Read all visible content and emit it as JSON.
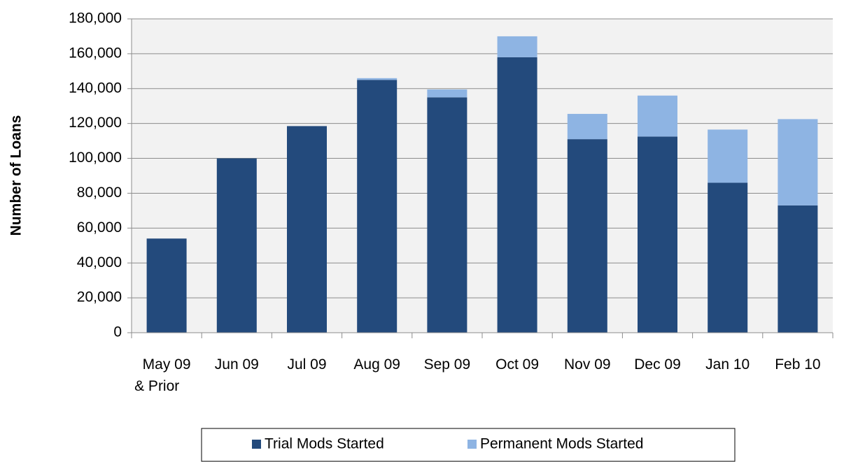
{
  "chart_data": {
    "type": "stacked_bar",
    "y_label": "Number of Loans",
    "categories": [
      "May 09\n& Prior",
      "Jun 09",
      "Jul 09",
      "Aug 09",
      "Sep 09",
      "Oct 09",
      "Nov 09",
      "Dec 09",
      "Jan 10",
      "Feb 10"
    ],
    "series": [
      {
        "name": "Trial Mods Started",
        "color": "#234a7c",
        "values": [
          54000,
          100000,
          118500,
          145000,
          135000,
          158000,
          111000,
          112500,
          86000,
          73000
        ]
      },
      {
        "name": "Permanent Mods Started",
        "color": "#8eb4e3",
        "values": [
          0,
          0,
          0,
          1000,
          4500,
          12000,
          14500,
          23500,
          30500,
          49500
        ]
      }
    ],
    "ylim": [
      0,
      180000
    ],
    "yticks": [
      0,
      {
        "value": 20000,
        "label": "20,000"
      },
      {
        "value": 40000,
        "label": "40,000"
      },
      {
        "value": 60000,
        "label": "60,000"
      },
      {
        "value": 80000,
        "label": "80,000"
      },
      {
        "value": 100000,
        "label": "100,000"
      },
      {
        "value": 120000,
        "label": "120,000"
      },
      {
        "value": 140000,
        "label": "140,000"
      },
      {
        "value": 160000,
        "label": "160,000"
      },
      {
        "value": 180000,
        "label": "180,000"
      }
    ],
    "grid": true,
    "legend": "bottom"
  }
}
